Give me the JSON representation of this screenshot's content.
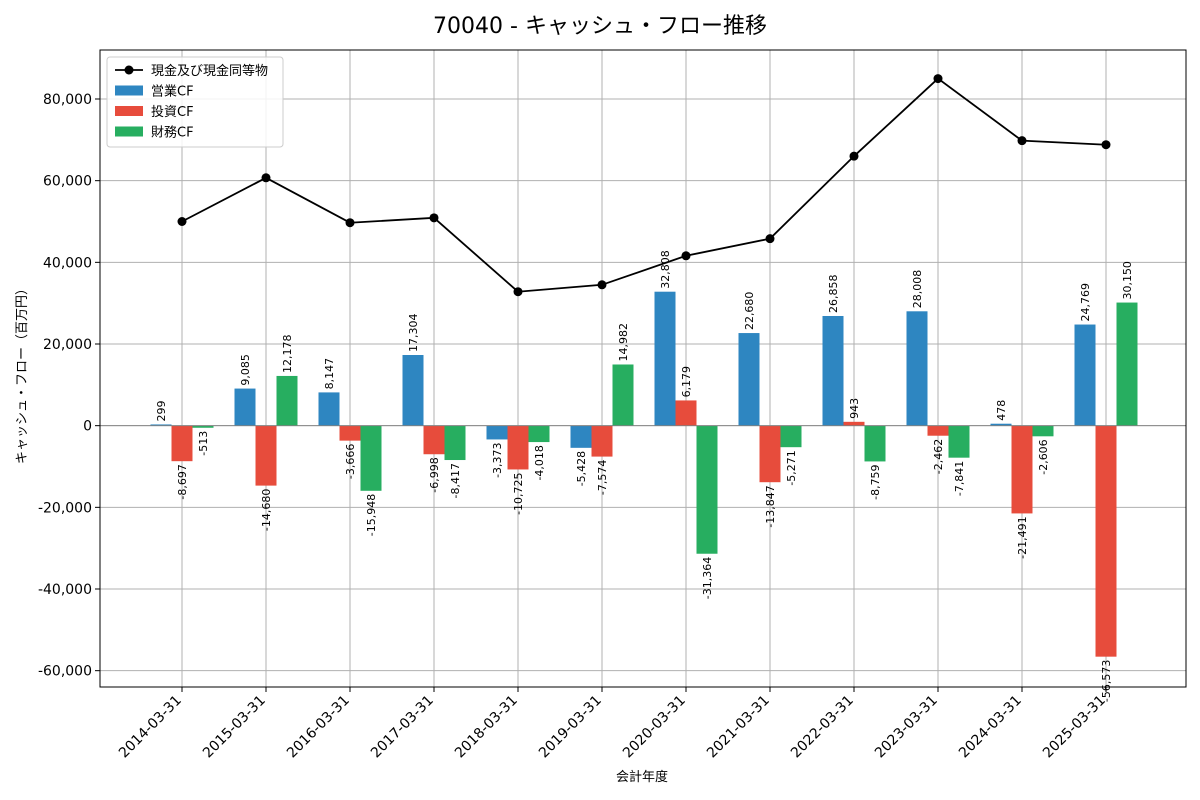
{
  "chart_data": {
    "type": "bar",
    "title": "70040 - キャッシュ・フロー推移",
    "xlabel": "会計年度",
    "ylabel": "キャッシュ・フロー（百万円）",
    "ylim": [
      -64000,
      92000
    ],
    "yticks": [
      -60000,
      -40000,
      -20000,
      0,
      20000,
      40000,
      60000,
      80000
    ],
    "ytick_labels": [
      "-60,000",
      "-40,000",
      "-20,000",
      "0",
      "20,000",
      "40,000",
      "60,000",
      "80,000"
    ],
    "grid": true,
    "legend_position": "top-left",
    "categories": [
      "2014-03-31",
      "2015-03-31",
      "2016-03-31",
      "2017-03-31",
      "2018-03-31",
      "2019-03-31",
      "2020-03-31",
      "2021-03-31",
      "2022-03-31",
      "2023-03-31",
      "2024-03-31",
      "2025-03-31"
    ],
    "series": [
      {
        "name": "営業CF",
        "kind": "bar",
        "color": "#2e86c1",
        "values": [
          299,
          9085,
          8147,
          17304,
          -3373,
          -5428,
          32808,
          22680,
          26858,
          28008,
          478,
          24769
        ],
        "labels": [
          "299",
          "9,085",
          "8,147",
          "17,304",
          "-3,373",
          "-5,428",
          "32,808",
          "22,680",
          "26,858",
          "28,008",
          "478",
          "24,769"
        ]
      },
      {
        "name": "投資CF",
        "kind": "bar",
        "color": "#e74c3c",
        "values": [
          -8697,
          -14680,
          -3666,
          -6998,
          -10725,
          -7574,
          6179,
          -13847,
          943,
          -2462,
          -21491,
          -56573
        ],
        "labels": [
          "-8,697",
          "-14,680",
          "-3,666",
          "-6,998",
          "-10,725",
          "-7,574",
          "6,179",
          "-13,847",
          "943",
          "-2,462",
          "-21,491",
          "-56,573"
        ]
      },
      {
        "name": "財務CF",
        "kind": "bar",
        "color": "#27ae60",
        "values": [
          -513,
          12178,
          -15948,
          -8417,
          -4018,
          14982,
          -31364,
          -5271,
          -8759,
          -7841,
          -2606,
          30150
        ],
        "labels": [
          "-513",
          "12,178",
          "-15,948",
          "-8,417",
          "-4,018",
          "14,982",
          "-31,364",
          "-5,271",
          "-8,759",
          "-7,841",
          "-2,606",
          "30,150"
        ]
      },
      {
        "name": "現金及び現金同等物",
        "kind": "line",
        "color": "#000000",
        "values": [
          50000,
          60700,
          49700,
          50900,
          32800,
          34500,
          41600,
          45800,
          66000,
          85000,
          69800,
          68800
        ]
      }
    ]
  }
}
